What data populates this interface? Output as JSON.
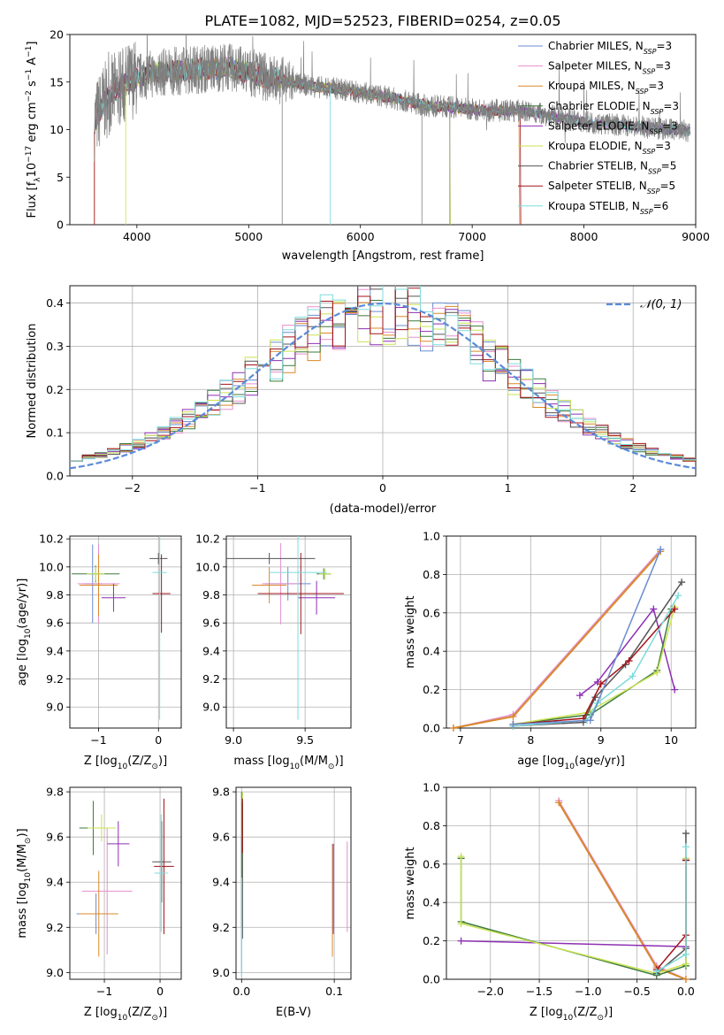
{
  "figure_title": "PLATE=1082, MJD=52523, FIBERID=0254, z=0.05",
  "colors": {
    "series": [
      "#6b8ccf",
      "#e58fcf",
      "#d9892a",
      "#3d7a3d",
      "#8d2fb3",
      "#c9e352",
      "#555555",
      "#a3131a",
      "#7fdbdb"
    ],
    "normal": "#5b8bd9",
    "data_gray": "#808080",
    "grid": "#b0b0b0"
  },
  "chart_data": [
    {
      "id": "spectrum",
      "type": "line",
      "title": "",
      "xlabel": "wavelength [Angstrom, rest frame]",
      "ylabel_parts": [
        "Flux [f",
        "λ",
        "10",
        "−17",
        " erg cm",
        "−2",
        " s",
        "−1",
        " A",
        "−1",
        "]"
      ],
      "xlim": [
        3400,
        9000
      ],
      "ylim": [
        0,
        20
      ],
      "xticks": [
        4000,
        5000,
        6000,
        7000,
        8000,
        9000
      ],
      "yticks": [
        0,
        5,
        10,
        15,
        20
      ],
      "grid": false,
      "legend_position": "top-right",
      "series": [
        {
          "name": "Chabrier MILES",
          "nssp": "3"
        },
        {
          "name": "Salpeter MILES",
          "nssp": "3"
        },
        {
          "name": "Kroupa MILES",
          "nssp": "3"
        },
        {
          "name": "Chabrier ELODIE",
          "nssp": "3"
        },
        {
          "name": "Salpeter ELODIE",
          "nssp": "3"
        },
        {
          "name": "Kroupa ELODIE",
          "nssp": "3"
        },
        {
          "name": "Chabrier STELIB",
          "nssp": "5"
        },
        {
          "name": "Salpeter STELIB",
          "nssp": "5"
        },
        {
          "name": "Kroupa STELIB",
          "nssp": "6"
        }
      ],
      "continuum": {
        "x": [
          3620,
          3700,
          3800,
          3900,
          4000,
          4100,
          4200,
          4400,
          4600,
          4800,
          5000,
          5200,
          5400,
          5600,
          5800,
          6000,
          6200,
          6400,
          6600,
          6800,
          7000,
          7200,
          7400,
          7600,
          7800,
          8000,
          8200,
          8400,
          8600,
          8800,
          9000
        ],
        "y": [
          10.8,
          12.8,
          14.0,
          14.8,
          15.5,
          15.8,
          16.0,
          16.2,
          16.4,
          16.6,
          16.0,
          15.4,
          14.9,
          14.5,
          14.3,
          13.9,
          13.5,
          13.0,
          12.5,
          12.4,
          12.1,
          12.0,
          12.0,
          11.7,
          11.2,
          10.8,
          10.6,
          10.4,
          10.2,
          10.0,
          9.8
        ]
      }
    },
    {
      "id": "residuals",
      "type": "histogram",
      "title": "",
      "xlabel": "(data-model)/error",
      "ylabel": "Normed distribution",
      "xlim": [
        -2.5,
        2.5
      ],
      "ylim": [
        0,
        0.44
      ],
      "xticks": [
        -2,
        -1,
        0,
        1,
        2
      ],
      "yticks": [
        0.0,
        0.1,
        0.2,
        0.3,
        0.4
      ],
      "grid": true,
      "legend_position": "top-right",
      "normal_label": "𝒩(0, 1)",
      "normal_curve": {
        "mean": 0,
        "sigma": 1
      },
      "bin_width": 0.1
    },
    {
      "id": "age-vs-z",
      "type": "errorbar",
      "xlabel_parts": [
        "Z [log",
        "10",
        "(Z/Z",
        "⊙",
        ")]"
      ],
      "ylabel_parts": [
        "age  [log",
        "10",
        "(age/yr)]"
      ],
      "xlim": [
        -1.48,
        0.38
      ],
      "ylim": [
        8.85,
        10.22
      ],
      "xticks": [
        -1,
        0
      ],
      "yticks": [
        9.0,
        9.2,
        9.4,
        9.6,
        9.8,
        10.0,
        10.2
      ],
      "grid": true,
      "points": [
        {
          "series": 0,
          "x": -1.1,
          "xerr": 0.15,
          "y": 9.88,
          "yerr": 0.28
        },
        {
          "series": 1,
          "x": -1.0,
          "xerr": 0.35,
          "y": 9.88,
          "yerr": 0.28
        },
        {
          "series": 2,
          "x": -1.0,
          "xerr": 0.32,
          "y": 9.87,
          "yerr": 0.22
        },
        {
          "series": 3,
          "x": -1.05,
          "xerr": 0.4,
          "y": 9.95,
          "yerr": 0.06
        },
        {
          "series": 4,
          "x": -0.75,
          "xerr": 0.2,
          "y": 9.78,
          "yerr": 0.1
        },
        {
          "series": 5,
          "x": -1.05,
          "xerr": 0.15,
          "y": 9.95,
          "yerr": 0.05
        },
        {
          "series": 6,
          "x": 0.0,
          "xerr": 0.15,
          "y": 10.06,
          "yerr": 0.04
        },
        {
          "series": 7,
          "x": 0.05,
          "xerr": 0.15,
          "y": 9.81,
          "yerr": 0.28
        },
        {
          "series": 8,
          "x": 0.02,
          "xerr": 0.12,
          "y": 9.96,
          "yerr": 1.05
        }
      ]
    },
    {
      "id": "age-vs-mass",
      "type": "errorbar",
      "xlabel_parts": [
        "mass [log",
        "10",
        "(M/M",
        "⊙",
        ")]"
      ],
      "ylabel_parts": [],
      "xlim": [
        8.95,
        9.82
      ],
      "ylim": [
        8.85,
        10.22
      ],
      "xticks": [
        9.0,
        9.5
      ],
      "yticks": [
        9.0,
        9.2,
        9.4,
        9.6,
        9.8,
        10.0,
        10.2
      ],
      "grid": true,
      "points": [
        {
          "series": 0,
          "x": 9.38,
          "xerr": 0.16,
          "y": 9.88,
          "yerr": 0.12
        },
        {
          "series": 1,
          "x": 9.33,
          "xerr": 0.13,
          "y": 9.88,
          "yerr": 0.29
        },
        {
          "series": 2,
          "x": 9.25,
          "xerr": 0.12,
          "y": 9.87,
          "yerr": 0.13
        },
        {
          "series": 3,
          "x": 9.63,
          "xerr": 0.05,
          "y": 9.95,
          "yerr": 0.04
        },
        {
          "series": 4,
          "x": 9.58,
          "xerr": 0.13,
          "y": 9.78,
          "yerr": 0.12
        },
        {
          "series": 5,
          "x": 9.64,
          "xerr": 0.04,
          "y": 9.95,
          "yerr": 0.04
        },
        {
          "series": 6,
          "x": 9.25,
          "xerr": 0.32,
          "y": 10.06,
          "yerr": 0.04
        },
        {
          "series": 7,
          "x": 9.47,
          "xerr": 0.3,
          "y": 9.81,
          "yerr": 0.29
        },
        {
          "series": 8,
          "x": 9.45,
          "xerr": 0.2,
          "y": 9.96,
          "yerr": 1.05
        }
      ]
    },
    {
      "id": "weights-vs-age",
      "type": "line",
      "xlabel_parts": [
        "age  [log",
        "10",
        "(age/yr)]"
      ],
      "ylabel": "mass weight",
      "xlim": [
        6.8,
        10.35
      ],
      "ylim": [
        0,
        1.0
      ],
      "xticks": [
        7,
        8,
        9,
        10
      ],
      "yticks": [
        0.0,
        0.2,
        0.4,
        0.6,
        0.8,
        1.0
      ],
      "grid": true,
      "series": [
        {
          "series": 1,
          "x": [
            6.9,
            7.75,
            9.85
          ],
          "y": [
            0.0,
            0.07,
            0.93
          ]
        },
        {
          "series": 2,
          "x": [
            6.9,
            7.75,
            9.85
          ],
          "y": [
            0.0,
            0.06,
            0.92
          ]
        },
        {
          "series": 4,
          "x": [
            8.7,
            8.95,
            9.75,
            10.05
          ],
          "y": [
            0.17,
            0.24,
            0.62,
            0.2
          ]
        },
        {
          "series": 3,
          "x": [
            7.75,
            8.85,
            9.8,
            10.0
          ],
          "y": [
            0.02,
            0.07,
            0.3,
            0.62
          ]
        },
        {
          "series": 5,
          "x": [
            7.75,
            8.8,
            9.8,
            10.05
          ],
          "y": [
            0.02,
            0.08,
            0.29,
            0.63
          ]
        },
        {
          "series": 6,
          "x": [
            7.75,
            8.75,
            8.92,
            9.35,
            10.15
          ],
          "y": [
            0.01,
            0.03,
            0.16,
            0.33,
            0.76
          ]
        },
        {
          "series": 7,
          "x": [
            7.75,
            8.75,
            9.0,
            9.4,
            10.05
          ],
          "y": [
            0.02,
            0.05,
            0.23,
            0.35,
            0.62
          ]
        },
        {
          "series": 8,
          "x": [
            7.75,
            8.8,
            8.95,
            9.45,
            10.1
          ],
          "y": [
            0.01,
            0.04,
            0.13,
            0.27,
            0.69
          ]
        },
        {
          "series": 0,
          "x": [
            7.75,
            8.85,
            9.85
          ],
          "y": [
            0.02,
            0.04,
            0.93
          ]
        }
      ]
    },
    {
      "id": "mass-vs-z",
      "type": "errorbar",
      "xlabel_parts": [
        "Z [log",
        "10",
        "(Z/Z",
        "⊙",
        ")]"
      ],
      "ylabel_parts": [
        "mass [log",
        "10",
        "(M/M",
        "⊙",
        ")]"
      ],
      "xlim": [
        -1.62,
        0.38
      ],
      "ylim": [
        8.97,
        9.82
      ],
      "xticks": [
        -1,
        0
      ],
      "yticks": [
        9.0,
        9.2,
        9.4,
        9.6,
        9.8
      ],
      "grid": true,
      "points": [
        {
          "series": 0,
          "x": -1.15,
          "xerr": 0.35,
          "y": 9.26,
          "yerr": 0.09
        },
        {
          "series": 1,
          "x": -0.95,
          "xerr": 0.45,
          "y": 9.36,
          "yerr": 0.28
        },
        {
          "series": 2,
          "x": -1.1,
          "xerr": 0.35,
          "y": 9.26,
          "yerr": 0.19
        },
        {
          "series": 3,
          "x": -1.2,
          "xerr": 0.25,
          "y": 9.64,
          "yerr": 0.12
        },
        {
          "series": 4,
          "x": -0.75,
          "xerr": 0.2,
          "y": 9.57,
          "yerr": 0.1
        },
        {
          "series": 5,
          "x": -1.05,
          "xerr": 0.25,
          "y": 9.64,
          "yerr": 0.06
        },
        {
          "series": 6,
          "x": 0.03,
          "xerr": 0.17,
          "y": 9.49,
          "yerr": 0.18
        },
        {
          "series": 7,
          "x": 0.07,
          "xerr": 0.18,
          "y": 9.47,
          "yerr": 0.3
        },
        {
          "series": 8,
          "x": 0.02,
          "xerr": 0.12,
          "y": 9.44,
          "yerr": 0.26
        }
      ]
    },
    {
      "id": "mass-vs-ebv",
      "type": "errorbar",
      "xlabel": "E(B-V)",
      "ylabel_parts": [],
      "xlim": [
        -0.006,
        0.118
      ],
      "ylim": [
        8.97,
        9.82
      ],
      "xticks": [
        0.0,
        0.1
      ],
      "yticks": [
        9.0,
        9.2,
        9.4,
        9.6,
        9.8
      ],
      "grid": true,
      "points": [
        {
          "series": 0,
          "x": 0.0,
          "xerr": 0.0,
          "y": 9.3,
          "yerr": 0.3
        },
        {
          "series": 1,
          "x": 0.114,
          "xerr": 0.0,
          "y": 9.38,
          "yerr": 0.2
        },
        {
          "series": 2,
          "x": 0.098,
          "xerr": 0.0,
          "y": 9.32,
          "yerr": 0.25
        },
        {
          "series": 3,
          "x": 0.0,
          "xerr": 0.0,
          "y": 9.5,
          "yerr": 0.3
        },
        {
          "series": 4,
          "x": 0.099,
          "xerr": 0.0,
          "y": 9.37,
          "yerr": 0.2
        },
        {
          "series": 5,
          "x": 0.001,
          "xerr": 0.0,
          "y": 9.6,
          "yerr": 0.2
        },
        {
          "series": 6,
          "x": 0.001,
          "xerr": 0.0,
          "y": 9.45,
          "yerr": 0.3
        },
        {
          "series": 7,
          "x": 0.001,
          "xerr": 0.0,
          "y": 9.65,
          "yerr": 0.12
        },
        {
          "series": 8,
          "x": 0.0,
          "xerr": 0.0,
          "y": 9.2,
          "yerr": 0.22
        }
      ]
    },
    {
      "id": "weights-vs-z",
      "type": "line",
      "xlabel_parts": [
        "Z [log",
        "10",
        "(Z/Z",
        "⊙",
        ")]"
      ],
      "ylabel": "mass weight",
      "xlim": [
        -2.45,
        0.1
      ],
      "ylim": [
        0,
        1.0
      ],
      "xticks": [
        -2.0,
        -1.5,
        -1.0,
        -0.5,
        0.0
      ],
      "yticks": [
        0.0,
        0.2,
        0.4,
        0.6,
        0.8,
        1.0
      ],
      "grid": true,
      "series": [
        {
          "series": 1,
          "x": [
            -1.3,
            -0.3,
            0.0
          ],
          "y": [
            0.93,
            0.07,
            0.0
          ]
        },
        {
          "series": 2,
          "x": [
            -1.3,
            -0.3,
            0.0
          ],
          "y": [
            0.92,
            0.06,
            0.0
          ]
        },
        {
          "series": 4,
          "x": [
            -2.3,
            0.0,
            0.0
          ],
          "y": [
            0.2,
            0.17,
            0.62
          ]
        },
        {
          "series": 3,
          "x": [
            -2.3,
            -2.3,
            -0.3,
            0.0,
            0.0
          ],
          "y": [
            0.63,
            0.3,
            0.02,
            0.07,
            0.62
          ]
        },
        {
          "series": 5,
          "x": [
            -2.3,
            -2.3,
            -0.3,
            0.0,
            0.0
          ],
          "y": [
            0.64,
            0.29,
            0.03,
            0.08,
            0.63
          ]
        },
        {
          "series": 6,
          "x": [
            -0.3,
            0.0,
            0.0
          ],
          "y": [
            0.03,
            0.16,
            0.76
          ]
        },
        {
          "series": 7,
          "x": [
            -0.3,
            0.0,
            0.0
          ],
          "y": [
            0.05,
            0.23,
            0.62
          ]
        },
        {
          "series": 8,
          "x": [
            -0.3,
            0.0,
            0.0
          ],
          "y": [
            0.04,
            0.13,
            0.69
          ]
        }
      ]
    }
  ]
}
